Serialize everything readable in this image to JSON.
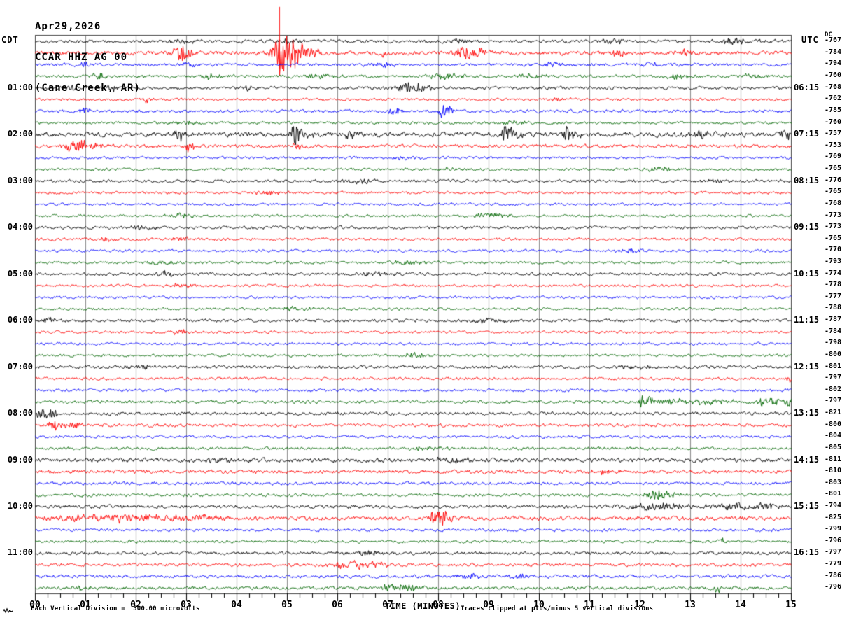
{
  "header": {
    "date": "Apr29,2026",
    "station": "CCAR HHZ AG 00",
    "location": "(Cane Creek, AR)"
  },
  "left_axis": {
    "header": "CDT",
    "labels": [
      "01:00",
      "02:00",
      "03:00",
      "04:00",
      "05:00",
      "06:00",
      "07:00",
      "08:00",
      "09:00",
      "10:00",
      "11:00"
    ]
  },
  "right_axis": {
    "header": "UTC",
    "labels": [
      "06:15",
      "07:15",
      "08:15",
      "09:15",
      "10:15",
      "11:15",
      "12:15",
      "13:15",
      "14:15",
      "15:15",
      "16:15"
    ]
  },
  "dc_column": {
    "header": "DC",
    "values": [
      -767,
      -784,
      -794,
      -760,
      -768,
      -762,
      -785,
      -760,
      -757,
      -753,
      -769,
      -765,
      -776,
      -765,
      -768,
      -773,
      -773,
      -765,
      -770,
      -793,
      -774,
      -778,
      -777,
      -788,
      -787,
      -784,
      -798,
      -800,
      -801,
      -797,
      -802,
      -797,
      -821,
      -800,
      -804,
      -805,
      -811,
      -810,
      -803,
      -801,
      -794,
      -825,
      -799,
      -796,
      -797,
      -779,
      -786,
      -796
    ]
  },
  "x_axis": {
    "label": "TIME (MINUTES)",
    "tick_labels": [
      "00",
      "01",
      "02",
      "03",
      "04",
      "05",
      "06",
      "07",
      "08",
      "09",
      "10",
      "11",
      "12",
      "13",
      "14",
      "15"
    ]
  },
  "footnotes": {
    "left": "Each Vertical Division =  500.00 microvolts",
    "right": "Traces clipped at plus/minus 5 vertical divisions"
  },
  "chart_data": {
    "type": "line",
    "subtype": "helicorder-seismogram",
    "title": "CCAR HHZ AG 00 (Cane Creek, AR) Apr29,2026",
    "x_unit": "minutes",
    "x_range": [
      0,
      15
    ],
    "rows_per_hour": 4,
    "minutes_per_row": 15,
    "division_microvolts": 500.0,
    "clip_divisions": 5,
    "grid": true,
    "colors": [
      "#000000",
      "#ff0000",
      "#0000ff",
      "#006600"
    ],
    "grid_color": "#8a8a8a",
    "rows": [
      {
        "n": 1.6,
        "e": [
          [
            2.95,
            3,
            0.3
          ],
          [
            5.0,
            3,
            0.3
          ],
          [
            8.45,
            3,
            0.25
          ],
          [
            11.5,
            3.5,
            0.3
          ],
          [
            13.85,
            4,
            0.35
          ],
          [
            14.6,
            3,
            0.2
          ]
        ]
      },
      {
        "n": 2.0,
        "e": [
          [
            2.87,
            11,
            0.12
          ],
          [
            3.02,
            5,
            0.2
          ],
          [
            4.88,
            34,
            0.18
          ],
          [
            5.1,
            16,
            0.25
          ],
          [
            5.35,
            8,
            0.3
          ],
          [
            6.95,
            6,
            0.08
          ],
          [
            8.55,
            9,
            0.25
          ],
          [
            8.75,
            5,
            0.3
          ],
          [
            11.55,
            5,
            0.15
          ],
          [
            12.9,
            4,
            0.2
          ],
          [
            14.95,
            4,
            0.1
          ]
        ],
        "s": [
          [
            4.845,
            66,
            22
          ]
        ]
      },
      {
        "n": 1.5,
        "e": [
          [
            0.95,
            4,
            0.15
          ],
          [
            3.1,
            3,
            0.3
          ],
          [
            6.9,
            3,
            0.3
          ],
          [
            10.3,
            3,
            0.3
          ],
          [
            12.2,
            3,
            0.2
          ]
        ]
      },
      {
        "n": 1.5,
        "e": [
          [
            1.3,
            4,
            0.2
          ],
          [
            3.45,
            3,
            0.3
          ],
          [
            5.6,
            3,
            0.4
          ],
          [
            8.2,
            4,
            0.4
          ],
          [
            9.9,
            3,
            0.3
          ],
          [
            12.75,
            4,
            0.25
          ],
          [
            14.2,
            3,
            0.3
          ]
        ]
      },
      {
        "n": 1.5,
        "e": [
          [
            0.75,
            5,
            0.12
          ],
          [
            1.5,
            6,
            0.1
          ],
          [
            4.2,
            4,
            0.15
          ],
          [
            7.4,
            7,
            0.3
          ],
          [
            7.7,
            4,
            0.2
          ]
        ]
      },
      {
        "n": 1.3,
        "e": [
          [
            2.2,
            4,
            0.12
          ],
          [
            10.4,
            3,
            0.2
          ]
        ]
      },
      {
        "n": 1.5,
        "e": [
          [
            0.98,
            6,
            0.1
          ],
          [
            7.1,
            5,
            0.15
          ],
          [
            8.1,
            11,
            0.08
          ],
          [
            8.2,
            6,
            0.1
          ]
        ]
      },
      {
        "n": 1.3,
        "e": [
          [
            3.0,
            3,
            0.3
          ],
          [
            9.5,
            3,
            0.3
          ]
        ]
      },
      {
        "n": 2.4,
        "e": [
          [
            2.85,
            7,
            0.15
          ],
          [
            5.15,
            13,
            0.1
          ],
          [
            5.3,
            6,
            0.2
          ],
          [
            6.25,
            8,
            0.12
          ],
          [
            9.35,
            13,
            0.1
          ],
          [
            9.5,
            6,
            0.2
          ],
          [
            10.55,
            15,
            0.08
          ],
          [
            10.7,
            7,
            0.15
          ],
          [
            13.2,
            6,
            0.2
          ],
          [
            14.9,
            7,
            0.12
          ]
        ]
      },
      {
        "n": 1.7,
        "e": [
          [
            0.8,
            9,
            0.2
          ],
          [
            1.0,
            5,
            0.3
          ],
          [
            3.05,
            8,
            0.1
          ],
          [
            5.2,
            6,
            0.1
          ]
        ]
      },
      {
        "n": 1.3,
        "e": [
          [
            7.3,
            3,
            0.3
          ]
        ]
      },
      {
        "n": 1.3,
        "e": [
          [
            8.3,
            3,
            0.3
          ],
          [
            12.4,
            3,
            0.3
          ]
        ]
      },
      {
        "n": 1.5,
        "e": [
          [
            6.5,
            3,
            0.3
          ],
          [
            13.5,
            3,
            0.3
          ]
        ]
      },
      {
        "n": 1.3,
        "e": [
          [
            4.6,
            3,
            0.3
          ]
        ]
      },
      {
        "n": 1.3,
        "e": []
      },
      {
        "n": 1.3,
        "e": [
          [
            2.9,
            3,
            0.3
          ],
          [
            9.0,
            3,
            0.4
          ]
        ]
      },
      {
        "n": 1.5,
        "e": [
          [
            2.1,
            3,
            0.3
          ]
        ]
      },
      {
        "n": 1.4,
        "e": [
          [
            1.4,
            4,
            0.15
          ],
          [
            2.9,
            3,
            0.2
          ]
        ]
      },
      {
        "n": 1.3,
        "e": [
          [
            11.8,
            3,
            0.3
          ]
        ]
      },
      {
        "n": 1.3,
        "e": [
          [
            2.5,
            3,
            0.3
          ],
          [
            7.4,
            3,
            0.4
          ]
        ]
      },
      {
        "n": 1.5,
        "e": [
          [
            2.6,
            4,
            0.2
          ],
          [
            6.8,
            3,
            0.4
          ]
        ]
      },
      {
        "n": 1.3,
        "e": [
          [
            2.9,
            3,
            0.25
          ]
        ]
      },
      {
        "n": 1.3,
        "e": []
      },
      {
        "n": 1.3,
        "e": [
          [
            5.2,
            3,
            0.3
          ]
        ]
      },
      {
        "n": 1.5,
        "e": [
          [
            0.3,
            4,
            0.2
          ],
          [
            9.0,
            3,
            0.4
          ]
        ]
      },
      {
        "n": 1.3,
        "e": [
          [
            2.9,
            3,
            0.2
          ]
        ]
      },
      {
        "n": 1.3,
        "e": []
      },
      {
        "n": 1.3,
        "e": [
          [
            7.5,
            3,
            0.3
          ]
        ]
      },
      {
        "n": 1.6,
        "e": [
          [
            2.1,
            3,
            0.3
          ],
          [
            12.0,
            3,
            0.4
          ]
        ]
      },
      {
        "n": 1.4,
        "e": [
          [
            14.97,
            9,
            0.06
          ]
        ]
      },
      {
        "n": 1.4,
        "e": []
      },
      {
        "n": 1.6,
        "e": [
          [
            12.02,
            11,
            0.05
          ],
          [
            12.18,
            9,
            0.08
          ],
          [
            12.6,
            4,
            0.5
          ],
          [
            13.4,
            3,
            0.5
          ],
          [
            14.55,
            6,
            0.25
          ],
          [
            14.93,
            9,
            0.08
          ]
        ]
      },
      {
        "n": 1.6,
        "e": [
          [
            0.12,
            8,
            0.12
          ],
          [
            0.3,
            6,
            0.18
          ]
        ]
      },
      {
        "n": 1.6,
        "e": [
          [
            0.38,
            8,
            0.15
          ],
          [
            0.7,
            4,
            0.3
          ]
        ]
      },
      {
        "n": 1.4,
        "e": []
      },
      {
        "n": 1.4,
        "e": [
          [
            7.8,
            3,
            0.3
          ]
        ]
      },
      {
        "n": 2.1,
        "e": [
          [
            3.6,
            3,
            0.4
          ],
          [
            8.2,
            3,
            0.4
          ]
        ]
      },
      {
        "n": 1.8,
        "e": [
          [
            11.3,
            3,
            0.4
          ]
        ]
      },
      {
        "n": 1.5,
        "e": []
      },
      {
        "n": 1.5,
        "e": [
          [
            12.3,
            6,
            0.2
          ],
          [
            12.5,
            4,
            0.3
          ]
        ]
      },
      {
        "n": 1.8,
        "e": [
          [
            12.3,
            5,
            0.6
          ],
          [
            13.8,
            5,
            0.4
          ],
          [
            14.5,
            4,
            0.3
          ]
        ]
      },
      {
        "n": 2.0,
        "e": [
          [
            1.0,
            4,
            0.8
          ],
          [
            2.0,
            4,
            0.8
          ],
          [
            3.0,
            4,
            0.8
          ],
          [
            7.95,
            9,
            0.2
          ],
          [
            8.15,
            6,
            0.25
          ]
        ]
      },
      {
        "n": 1.5,
        "e": []
      },
      {
        "n": 1.4,
        "e": [
          [
            13.6,
            5,
            0.1
          ]
        ]
      },
      {
        "n": 1.6,
        "e": [
          [
            6.6,
            3,
            0.4
          ]
        ]
      },
      {
        "n": 1.6,
        "e": [
          [
            6.3,
            5,
            0.4
          ],
          [
            6.7,
            4,
            0.3
          ]
        ]
      },
      {
        "n": 1.6,
        "e": [
          [
            8.6,
            4,
            0.2
          ],
          [
            9.6,
            3,
            0.3
          ]
        ]
      },
      {
        "n": 1.6,
        "e": [
          [
            0.9,
            4,
            0.2
          ],
          [
            7.1,
            5,
            0.3
          ],
          [
            7.4,
            4,
            0.3
          ],
          [
            13.55,
            6,
            0.1
          ]
        ]
      }
    ]
  }
}
